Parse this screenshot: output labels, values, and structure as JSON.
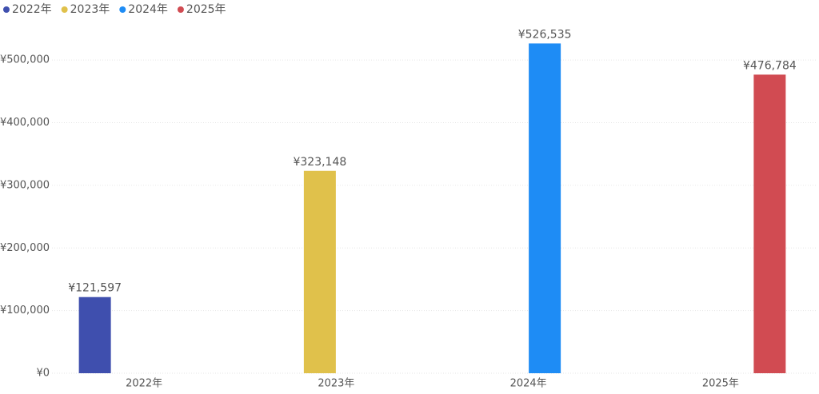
{
  "chart_data": {
    "type": "bar",
    "categories": [
      "2022年",
      "2023年",
      "2024年",
      "2025年"
    ],
    "series": [
      {
        "name": "2022年",
        "color": "#3f4fae",
        "values": [
          121597,
          null,
          null,
          null
        ],
        "value_labels": [
          "¥121,597",
          null,
          null,
          null
        ]
      },
      {
        "name": "2023年",
        "color": "#e0c14b",
        "values": [
          null,
          323148,
          null,
          null
        ],
        "value_labels": [
          null,
          "¥323,148",
          null,
          null
        ]
      },
      {
        "name": "2024年",
        "color": "#1e8cf5",
        "values": [
          null,
          null,
          526535,
          null
        ],
        "value_labels": [
          null,
          null,
          "¥526,535",
          null
        ]
      },
      {
        "name": "2025年",
        "color": "#d14b52",
        "values": [
          null,
          null,
          null,
          476784
        ],
        "value_labels": [
          null,
          null,
          null,
          "¥476,784"
        ]
      }
    ],
    "ylim": [
      0,
      550000
    ],
    "yticks": [
      {
        "value": 0,
        "label": "¥0"
      },
      {
        "value": 100000,
        "label": "¥100,000"
      },
      {
        "value": 200000,
        "label": "¥200,000"
      },
      {
        "value": 300000,
        "label": "¥300,000"
      },
      {
        "value": 400000,
        "label": "¥400,000"
      },
      {
        "value": 500000,
        "label": "¥500,000"
      }
    ],
    "grid": true,
    "legend": "top-left"
  }
}
